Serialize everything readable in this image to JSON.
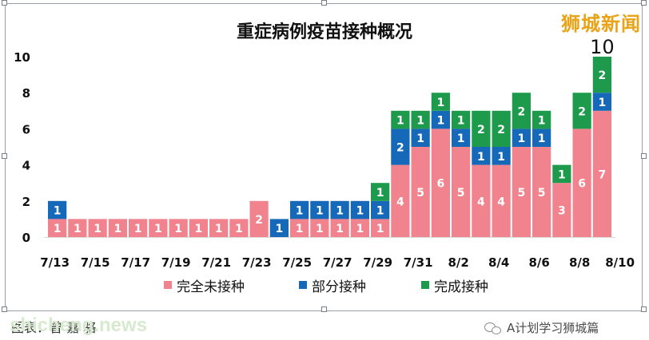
{
  "brand": "狮城新闻",
  "watermark": "shicheng.news",
  "source_label": "图表：曾  嘉  骆",
  "wechat_account": "A计划学习狮城篇",
  "chart_data": {
    "type": "bar",
    "stacked": true,
    "title": "重症病例疫苗接种概况",
    "ylim": [
      0,
      10
    ],
    "yticks": [
      0,
      2,
      4,
      6,
      8,
      10
    ],
    "categories": [
      "7/13",
      "7/14",
      "7/15",
      "7/16",
      "7/17",
      "7/18",
      "7/19",
      "7/20",
      "7/21",
      "7/22",
      "7/23",
      "7/24",
      "7/25",
      "7/26",
      "7/27",
      "7/28",
      "7/29",
      "7/30",
      "7/31",
      "8/1",
      "8/2",
      "8/3",
      "8/4",
      "8/5",
      "8/6",
      "8/7",
      "8/8",
      "8/9"
    ],
    "xtick_labels": [
      "7/13",
      "7/15",
      "7/17",
      "7/19",
      "7/21",
      "7/23",
      "7/25",
      "7/27",
      "7/29",
      "7/31",
      "8/2",
      "8/4",
      "8/6",
      "8/8",
      "8/10"
    ],
    "series": [
      {
        "name": "完全未接种",
        "color": "#f0838d",
        "values": [
          1,
          1,
          1,
          1,
          1,
          1,
          1,
          1,
          1,
          1,
          2,
          0,
          1,
          1,
          1,
          1,
          1,
          4,
          5,
          6,
          5,
          4,
          4,
          5,
          5,
          3,
          6,
          7
        ]
      },
      {
        "name": "部分接种",
        "color": "#1669b8",
        "values": [
          1,
          0,
          0,
          0,
          0,
          0,
          0,
          0,
          0,
          0,
          0,
          1,
          1,
          1,
          1,
          1,
          1,
          2,
          1,
          1,
          1,
          1,
          1,
          1,
          1,
          0,
          0,
          1
        ]
      },
      {
        "name": "完成接种",
        "color": "#1d9a4b",
        "values": [
          0,
          0,
          0,
          0,
          0,
          0,
          0,
          0,
          0,
          0,
          0,
          0,
          0,
          0,
          0,
          0,
          1,
          1,
          1,
          1,
          1,
          2,
          2,
          2,
          1,
          1,
          2,
          2
        ]
      }
    ],
    "totals_label": {
      "index": 27,
      "value": "10"
    },
    "legend_position": "bottom",
    "grid": false
  }
}
